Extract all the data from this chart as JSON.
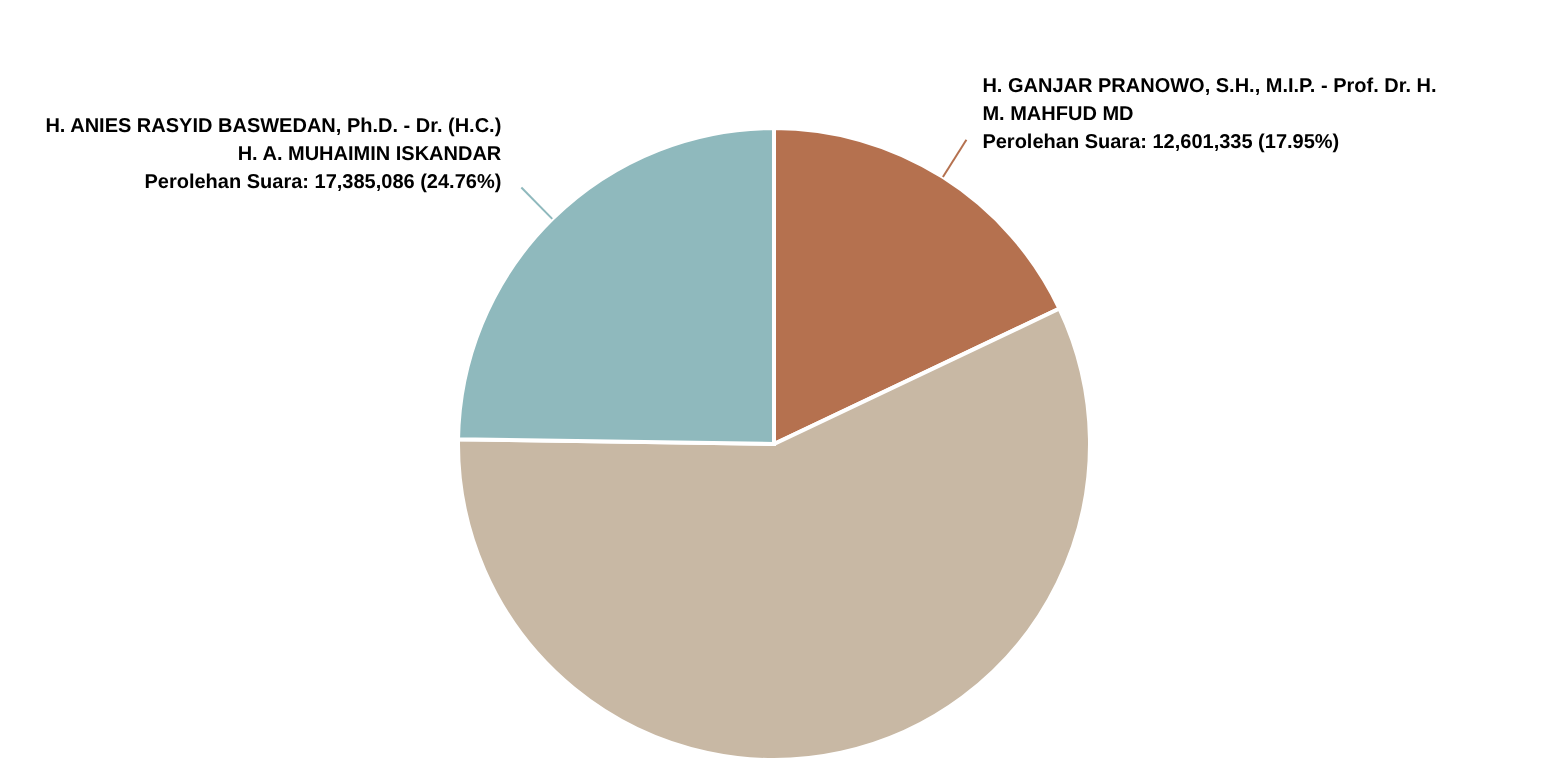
{
  "chart_data": {
    "type": "pie",
    "categories": [
      "H. GANJAR PRANOWO, S.H., M.I.P. - Prof. Dr. H. M. MAHFUD MD",
      null,
      "H. ANIES RASYID BASWEDAN, Ph.D. - Dr. (H.C.) H. A. MUHAIMIN ISKANDAR"
    ],
    "values": [
      17.95,
      57.29,
      24.76
    ],
    "value_labels": [
      "Perolehan Suara: 12,601,335 (17.95%)",
      null,
      "Perolehan Suara: 17,385,086 (24.76%)"
    ],
    "colors": [
      "#b5714f",
      "#c8b8a4",
      "#8fb9bd"
    ],
    "legend": false
  }
}
